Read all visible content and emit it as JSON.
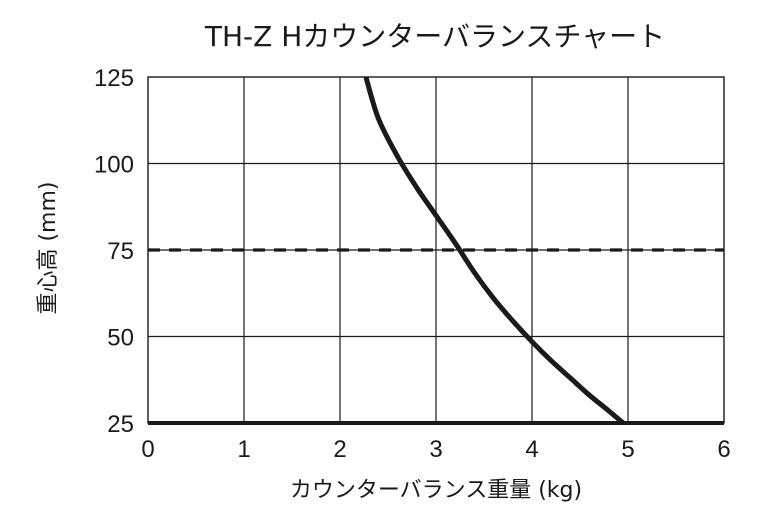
{
  "chart_data": {
    "type": "line",
    "title": "TH-Z Hカウンターバランスチャート",
    "xlabel": "カウンターバランス重量 (kg)",
    "ylabel": "重心高 (mm)",
    "xlim": [
      0,
      6
    ],
    "ylim": [
      25,
      125
    ],
    "x_ticks": [
      "0",
      "1",
      "2",
      "3",
      "4",
      "5",
      "6"
    ],
    "y_ticks": [
      "25",
      "50",
      "75",
      "100",
      "125"
    ],
    "grid": true,
    "series": [
      {
        "x": [
          2.27,
          2.4,
          2.6,
          2.8,
          3.0,
          3.2,
          3.4,
          3.6,
          3.8,
          4.0,
          4.2,
          4.4,
          4.6,
          4.8,
          4.95
        ],
        "y": [
          125,
          113,
          102,
          93,
          85,
          77,
          68.5,
          61,
          54.5,
          48.5,
          43,
          38,
          33,
          28.5,
          25
        ],
        "color": "#1a1a1a",
        "style": "solid"
      }
    ],
    "reference_lines": [
      {
        "y": 75,
        "style": "dashed",
        "color": "#1a1a1a"
      }
    ]
  }
}
